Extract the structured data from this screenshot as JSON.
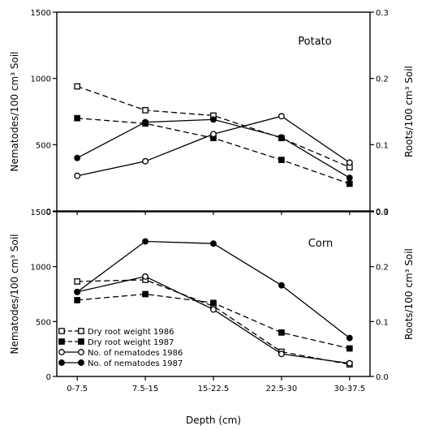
{
  "chart_data": {
    "type": "line",
    "xlabel": "Depth (cm)",
    "categories": [
      "0-7.5",
      "7.5-15",
      "15-22.5",
      "22.5-30",
      "30-37.5"
    ],
    "legend": {
      "placement": "lower-left of bottom panel",
      "entries": [
        {
          "label": "Dry root weight 1986",
          "style": "dashed",
          "marker": "open-square"
        },
        {
          "label": "Dry root weight 1987",
          "style": "dashed",
          "marker": "filled-square"
        },
        {
          "label": "No. of nematodes 1986",
          "style": "solid",
          "marker": "open-circle"
        },
        {
          "label": "No. of nematodes 1987",
          "style": "solid",
          "marker": "filled-circle"
        }
      ]
    },
    "panels": [
      {
        "label": "Potato",
        "ylabel_left": "Nematodes/100 cm³ Soil",
        "ylabel_right": "Roots/100 cm³ Soil",
        "ylim_left": [
          0,
          1500
        ],
        "ylim_right": [
          0.0,
          0.3
        ],
        "yticks_left": [
          "0",
          "500",
          "1000",
          "1500"
        ],
        "yticks_right": [
          "0.0",
          "0.1",
          "0.2",
          "0.3"
        ],
        "xtick_labels": false,
        "series": [
          {
            "name": "Dry root weight 1986",
            "axis": "right",
            "values": [
              0.188,
              0.152,
              0.144,
              0.11,
              0.066
            ]
          },
          {
            "name": "Dry root weight 1987",
            "axis": "right",
            "values": [
              0.14,
              0.132,
              0.11,
              0.077,
              0.041
            ]
          },
          {
            "name": "No. of nematodes 1986",
            "axis": "left",
            "values": [
              265,
              375,
              580,
              715,
              365
            ]
          },
          {
            "name": "No. of nematodes 1987",
            "axis": "left",
            "values": [
              400,
              670,
              690,
              555,
              250
            ]
          }
        ]
      },
      {
        "label": "Corn",
        "ylabel_left": "Nematodes/100 cm³ Soil",
        "ylabel_right": "Roots/100 cm³ Soil",
        "ylim_left": [
          0,
          1500
        ],
        "ylim_right": [
          0.0,
          0.3
        ],
        "yticks_left": [
          "0",
          "500",
          "1000",
          "1500"
        ],
        "yticks_right": [
          "0.0",
          "0.1",
          "0.2",
          "0.3"
        ],
        "xtick_labels": true,
        "series": [
          {
            "name": "Dry root weight 1986",
            "axis": "right",
            "values": [
              0.173,
              0.176,
              0.128,
              0.045,
              0.022
            ]
          },
          {
            "name": "Dry root weight 1987",
            "axis": "right",
            "values": [
              0.139,
              0.15,
              0.134,
              0.08,
              0.051
            ]
          },
          {
            "name": "No. of nematodes 1986",
            "axis": "left",
            "values": [
              770,
              910,
              610,
              205,
              120
            ]
          },
          {
            "name": "No. of nematodes 1987",
            "axis": "left",
            "values": [
              770,
              1230,
              1210,
              830,
              350
            ]
          }
        ]
      }
    ]
  }
}
